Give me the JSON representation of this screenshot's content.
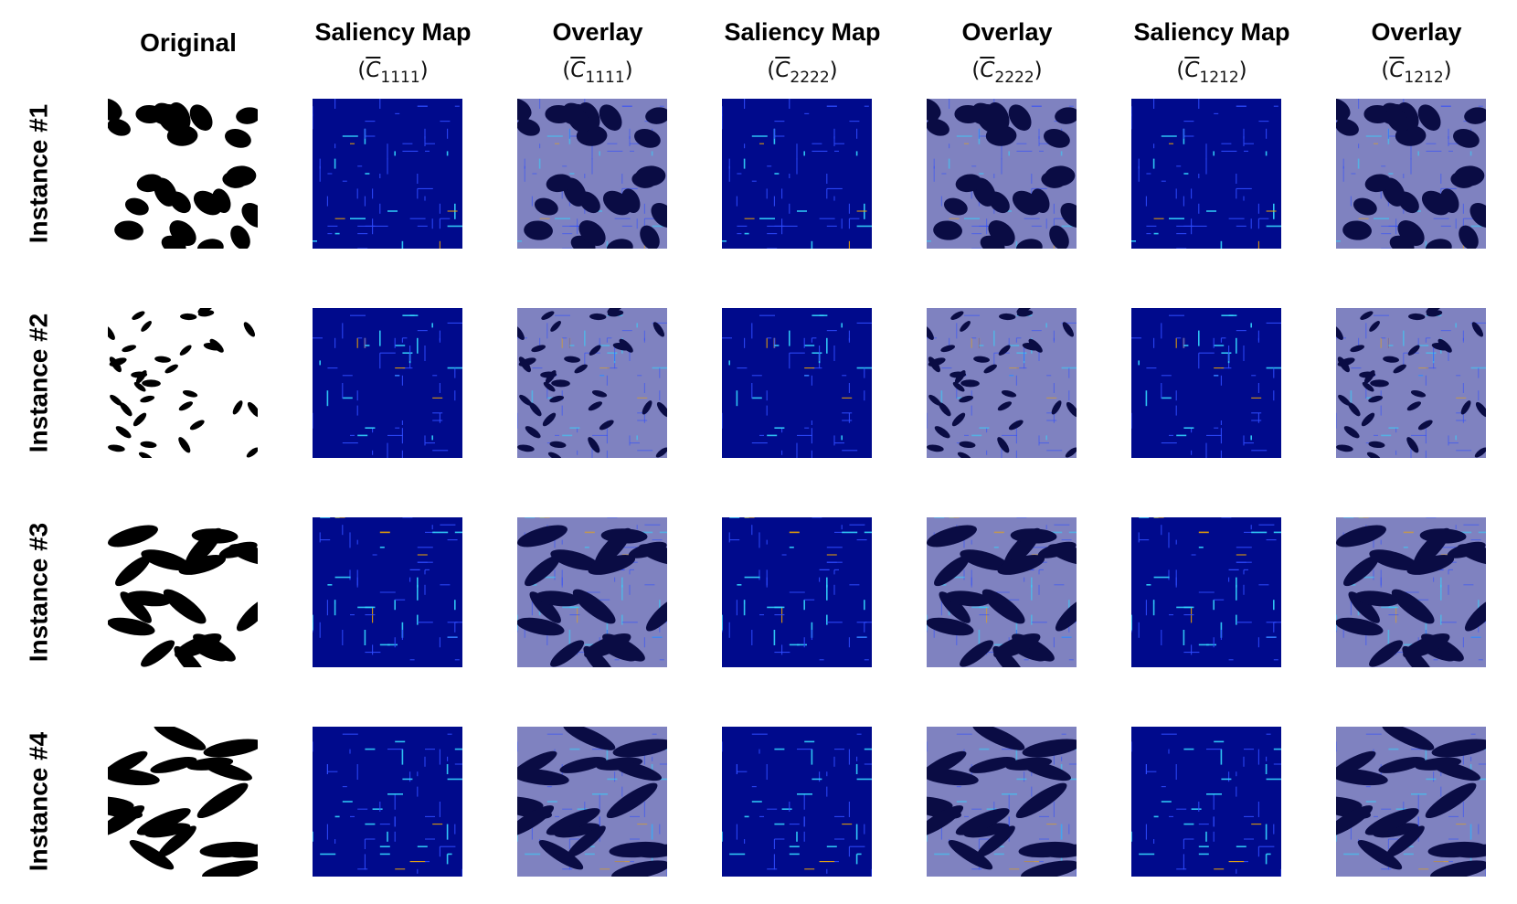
{
  "columns": [
    {
      "title": "Original"
    },
    {
      "title": "Saliency Map",
      "sub_index": "1111"
    },
    {
      "title": "Overlay",
      "sub_index": "1111"
    },
    {
      "title": "Saliency Map",
      "sub_index": "2222"
    },
    {
      "title": "Overlay",
      "sub_index": "2222"
    },
    {
      "title": "Saliency Map",
      "sub_index": "1212"
    },
    {
      "title": "Overlay",
      "sub_index": "1212"
    }
  ],
  "rows": [
    {
      "label": "Instance #1"
    },
    {
      "label": "Instance #2"
    },
    {
      "label": "Instance #3"
    },
    {
      "label": "Instance #4"
    }
  ],
  "colors": {
    "saliency_bg": "#000a8c",
    "overlay_bg": "#7f82c0",
    "overlay_shape": "#0a0c44",
    "hot_line": "#34d6ff",
    "warm_line": "#f2a800"
  }
}
